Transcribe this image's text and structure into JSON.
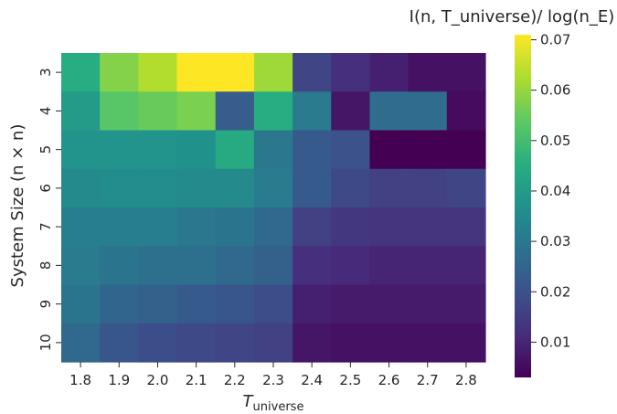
{
  "chart_data": {
    "type": "heatmap",
    "x": [
      "1.8",
      "1.9",
      "2.0",
      "2.1",
      "2.2",
      "2.3",
      "2.4",
      "2.5",
      "2.6",
      "2.7",
      "2.8"
    ],
    "y": [
      "3",
      "4",
      "5",
      "6",
      "7",
      "8",
      "9",
      "10"
    ],
    "values": [
      [
        0.045,
        0.058,
        0.063,
        0.071,
        0.071,
        0.061,
        0.017,
        0.012,
        0.009,
        0.006,
        0.006
      ],
      [
        0.04,
        0.053,
        0.055,
        0.057,
        0.023,
        0.045,
        0.031,
        0.007,
        0.027,
        0.027,
        0.005
      ],
      [
        0.038,
        0.038,
        0.038,
        0.037,
        0.044,
        0.03,
        0.022,
        0.02,
        0.003,
        0.003,
        0.003
      ],
      [
        0.035,
        0.036,
        0.036,
        0.035,
        0.035,
        0.031,
        0.022,
        0.018,
        0.016,
        0.016,
        0.017
      ],
      [
        0.032,
        0.032,
        0.032,
        0.03,
        0.029,
        0.026,
        0.016,
        0.014,
        0.013,
        0.013,
        0.013
      ],
      [
        0.031,
        0.029,
        0.028,
        0.028,
        0.026,
        0.024,
        0.012,
        0.011,
        0.01,
        0.01,
        0.01
      ],
      [
        0.029,
        0.025,
        0.024,
        0.022,
        0.021,
        0.019,
        0.009,
        0.008,
        0.008,
        0.008,
        0.008
      ],
      [
        0.026,
        0.021,
        0.019,
        0.018,
        0.017,
        0.016,
        0.007,
        0.006,
        0.006,
        0.006,
        0.006
      ]
    ],
    "xlabel": "T_universe",
    "ylabel": "System Size (n × n)",
    "colorbar": {
      "title": "I(n, T_universe)/ log(n_E)",
      "min": 0.003,
      "max": 0.071,
      "ticks": [
        "0.01",
        "0.02",
        "0.03",
        "0.04",
        "0.05",
        "0.06",
        "0.07"
      ],
      "colormap": "viridis"
    },
    "grid": false
  }
}
